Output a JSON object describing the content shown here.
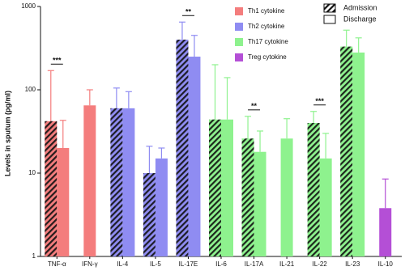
{
  "chart_data": {
    "type": "bar",
    "log_scale": true,
    "y_label": "Levels in sputum (pg/ml)",
    "categories": [
      "TNF-α",
      "IFN-γ",
      "IL-4",
      "IL-5",
      "IL-17E",
      "IL-6",
      "IL-17A",
      "IL-21",
      "IL-22",
      "IL-23",
      "IL-10"
    ],
    "groups": [
      {
        "name": "Th1 cytokine",
        "color": "#f47d7d",
        "members": [
          0,
          1
        ]
      },
      {
        "name": "Th2 cytokine",
        "color": "#8f8cf2",
        "members": [
          2,
          3,
          4
        ]
      },
      {
        "name": "Th17 cytokine",
        "color": "#8ef28e",
        "members": [
          5,
          6,
          7,
          8,
          9
        ]
      },
      {
        "name": "Treg cytokine",
        "color": "#b44fd6",
        "members": [
          10
        ]
      }
    ],
    "series": [
      {
        "name": "Admission",
        "hatched": true,
        "values": [
          42,
          null,
          60,
          10,
          400,
          44,
          26,
          null,
          40,
          330,
          null
        ],
        "errors": [
          128,
          null,
          45,
          11,
          250,
          156,
          22,
          null,
          15,
          190,
          null
        ]
      },
      {
        "name": "Discharge",
        "hatched": false,
        "values": [
          20,
          65,
          60,
          15,
          250,
          44,
          18,
          26,
          15,
          280,
          3.8
        ],
        "errors": [
          23,
          35,
          35,
          5,
          200,
          96,
          14,
          19,
          15,
          140,
          4.7
        ]
      }
    ],
    "annotations": [
      {
        "text": "***",
        "category": 0
      },
      {
        "text": "**",
        "category": 4
      },
      {
        "text": "**",
        "category": 6
      },
      {
        "text": "***",
        "category": 8
      }
    ],
    "ylim": [
      1,
      1000
    ],
    "yticks": [
      1,
      10,
      100,
      1000
    ]
  }
}
